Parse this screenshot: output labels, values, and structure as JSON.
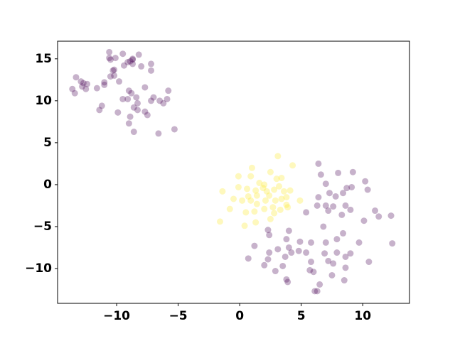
{
  "chart_data": {
    "type": "scatter",
    "xlim": [
      -14.8,
      13.8
    ],
    "ylim": [
      -14.15,
      17.1
    ],
    "xticks": [
      {
        "value": -10,
        "label": "−10"
      },
      {
        "value": -5,
        "label": "−5"
      },
      0,
      5,
      10
    ],
    "yticks": [
      {
        "value": -10,
        "label": "−10"
      },
      {
        "value": -5,
        "label": "−5"
      },
      0,
      5,
      10,
      15
    ],
    "alpha": 0.3,
    "series": [
      {
        "color": "#440154",
        "x": [
          -10.6,
          -10.6,
          -10.5,
          -10.1,
          -9.5,
          -8.7,
          -8.2,
          -8.7,
          -8.9,
          -9.1,
          -9.4,
          -10.3,
          -10.5,
          -10.2,
          -7.2,
          -7.2,
          -8.0,
          -8.7,
          -13.3,
          -12.9,
          -12.7,
          -12.4,
          -12.8,
          -12.5,
          -13.6,
          -13.4,
          -11.6,
          -11.0,
          -11.0,
          -10.2,
          -9.8,
          -9.0,
          -8.8,
          -9.1,
          -8.4,
          -7.7,
          -7.2,
          -7.0,
          -6.5,
          -5.8,
          -5.9,
          -6.2,
          -7.7,
          -7.5,
          -8.9,
          -9.0,
          -8.3,
          -8.6,
          -9.5,
          -11.2,
          -11.4,
          -9.9,
          -8.6,
          -6.6,
          -5.3,
          -8.3,
          6.4,
          6.6,
          8.0,
          9.2,
          7.0,
          8.7,
          9.1,
          10.2,
          10.4,
          7.3,
          7.8,
          8.4,
          6.4,
          6.3,
          5.4,
          7.0,
          7.6,
          8.6,
          9.0,
          7.2,
          8.3,
          11.0,
          11.3,
          12.3,
          10.1,
          6.8,
          8.4,
          2.3,
          2.4,
          1.2,
          3.8,
          4.0,
          3.1,
          3.7,
          2.4,
          4.2,
          2.3,
          2.0,
          2.9,
          3.5,
          3.9,
          3.8,
          4.8,
          5.4,
          5.8,
          5.8,
          5.7,
          6.0,
          7.0,
          6.9,
          7.2,
          7.9,
          9.0,
          9.7,
          7.9,
          8.6,
          7.6,
          7.5,
          8.6,
          6.5,
          6.3,
          6.1,
          8.5,
          12.4,
          4.0,
          4.9,
          10.5,
          0.7
        ],
        "y": [
          15.8,
          15.1,
          14.9,
          15.1,
          15.6,
          15.0,
          15.5,
          14.9,
          14.7,
          14.6,
          14.2,
          13.6,
          12.9,
          13.7,
          14.4,
          13.6,
          14.1,
          14.4,
          12.8,
          12.3,
          12.1,
          12.0,
          11.7,
          11.4,
          11.4,
          10.9,
          11.5,
          12.2,
          11.9,
          13.0,
          12.3,
          11.2,
          10.9,
          10.2,
          10.4,
          11.6,
          10.0,
          10.4,
          10.0,
          11.2,
          10.2,
          9.7,
          8.7,
          8.3,
          8.1,
          7.3,
          8.9,
          9.2,
          10.2,
          9.4,
          8.9,
          8.6,
          6.3,
          6.1,
          6.6,
          9.7,
          2.5,
          1.2,
          1.4,
          1.5,
          0.1,
          -0.4,
          -0.3,
          0.4,
          -0.6,
          -1.0,
          -1.4,
          -1.0,
          -1.5,
          -2.5,
          -3.3,
          -2.5,
          -2.6,
          -2.5,
          -3.0,
          -3.1,
          -3.6,
          -3.1,
          -3.8,
          -3.7,
          -4.3,
          -5.0,
          -5.8,
          -5.4,
          -6.0,
          -7.3,
          -6.5,
          -7.5,
          -7.7,
          -8.6,
          -8.1,
          -8.1,
          -8.9,
          -9.6,
          -10.3,
          -9.7,
          -11.6,
          -11.3,
          -7.9,
          -8.1,
          -6.9,
          -9.2,
          -10.2,
          -10.4,
          -6.9,
          -8.2,
          -9.1,
          -8.1,
          -8.2,
          -6.9,
          -6.5,
          -8.6,
          -9.4,
          -10.8,
          -9.9,
          -11.9,
          -12.7,
          -12.7,
          -11.4,
          -7.0,
          -5.5,
          -6.8,
          -9.2,
          -8.8
        ]
      },
      {
        "color": "#fde725",
        "x": [
          3.1,
          4.3,
          1.0,
          2.5,
          -0.1,
          0.9,
          3.0,
          1.6,
          3.4,
          2.0,
          -1.4,
          0.6,
          1.3,
          1.4,
          1.9,
          2.2,
          2.8,
          3.6,
          3.8,
          4.1,
          4.9,
          -0.5,
          0.2,
          0.7,
          0.9,
          1.4,
          2.1,
          2.4,
          2.9,
          3.4,
          3.9,
          3.3,
          2.7,
          2.0,
          1.2,
          0.5,
          -0.8,
          1.3,
          0.4,
          -1.6,
          2.8,
          2.5,
          3.8,
          -0.1,
          3.2
        ],
        "y": [
          3.4,
          2.3,
          2.0,
          1.5,
          1.0,
          1.0,
          0.7,
          0.2,
          0.8,
          0.0,
          -0.8,
          -0.5,
          -0.7,
          -1.3,
          -0.4,
          -0.8,
          -0.6,
          -0.8,
          -1.5,
          -0.7,
          -1.9,
          -1.7,
          -1.9,
          -1.4,
          -1.9,
          -2.3,
          -1.9,
          -1.3,
          -1.9,
          -1.7,
          -2.7,
          -3.0,
          -2.7,
          -2.9,
          -3.2,
          -3.3,
          -2.9,
          -4.5,
          -4.9,
          -4.4,
          -3.4,
          -4.1,
          -2.4,
          -0.3,
          -0.2
        ]
      }
    ]
  }
}
